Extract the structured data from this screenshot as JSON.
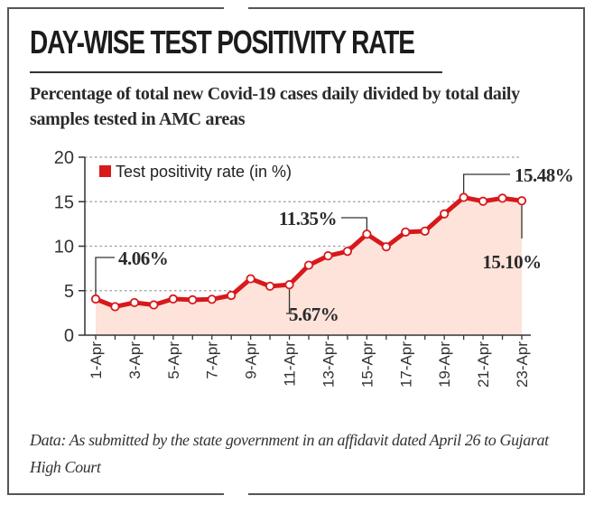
{
  "title": "DAY-WISE TEST POSITIVITY RATE",
  "subtitle": "Percentage of total new Covid-19 cases daily divided by total daily samples tested in AMC areas",
  "footer": "Data: As submitted by the state government in an affidavit dated April 26 to Gujarat High Court",
  "colors": {
    "line": "#d7191c",
    "area": "#fde3da",
    "grid": "#999999"
  },
  "chart_data": {
    "type": "area",
    "title": "DAY-WISE TEST POSITIVITY RATE",
    "legend": {
      "label": "Test positivity rate (in %)",
      "placement": "top-left"
    },
    "x": [
      "1-Apr",
      "2-Apr",
      "3-Apr",
      "4-Apr",
      "5-Apr",
      "6-Apr",
      "7-Apr",
      "8-Apr",
      "9-Apr",
      "10-Apr",
      "11-Apr",
      "12-Apr",
      "13-Apr",
      "14-Apr",
      "15-Apr",
      "16-Apr",
      "17-Apr",
      "18-Apr",
      "19-Apr",
      "20-Apr",
      "21-Apr",
      "22-Apr",
      "23-Apr"
    ],
    "x_tick_labels": [
      "1-Apr",
      "3-Apr",
      "5-Apr",
      "7-Apr",
      "9-Apr",
      "11-Apr",
      "13-Apr",
      "15-Apr",
      "17-Apr",
      "19-Apr",
      "21-Apr",
      "23-Apr"
    ],
    "series": [
      {
        "name": "Test positivity rate (in %)",
        "values": [
          4.06,
          3.2,
          3.66,
          3.4,
          4.07,
          3.97,
          4.03,
          4.47,
          6.34,
          5.5,
          5.67,
          7.86,
          8.92,
          9.42,
          11.35,
          9.93,
          11.59,
          11.69,
          13.63,
          15.48,
          15.05,
          15.39,
          15.1
        ]
      }
    ],
    "annotations": [
      {
        "x": "1-Apr",
        "label": "4.06%"
      },
      {
        "x": "11-Apr",
        "label": "5.67%"
      },
      {
        "x": "15-Apr",
        "label": "11.35%"
      },
      {
        "x": "20-Apr",
        "label": "15.48%"
      },
      {
        "x": "23-Apr",
        "label": "15.10%"
      }
    ],
    "y_ticks": [
      0,
      5,
      10,
      15,
      20
    ],
    "ylim": [
      0,
      20
    ],
    "grid": "horizontal dashed"
  }
}
